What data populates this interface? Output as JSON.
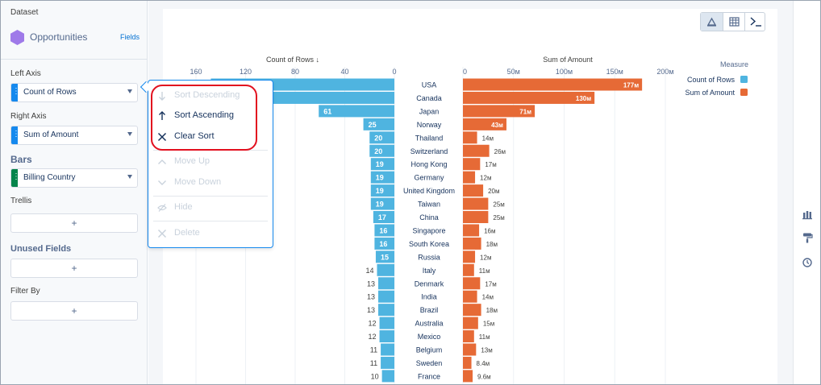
{
  "left_panel": {
    "dataset_label": "Dataset",
    "dataset_name": "Opportunities",
    "fields_link": "Fields",
    "left_axis_label": "Left Axis",
    "left_axis_value": "Count of Rows",
    "right_axis_label": "Right Axis",
    "right_axis_value": "Sum of Amount",
    "bars_label": "Bars",
    "bars_value": "Billing Country",
    "trellis_label": "Trellis",
    "unused_label": "Unused Fields",
    "filter_label": "Filter By",
    "add_symbol": "+",
    "colors": {
      "left_tab": "#1589ee",
      "right_tab": "#1589ee",
      "bars_tab": "#04844b",
      "hex": "#9f7ae9"
    }
  },
  "popup_menu": {
    "items": [
      {
        "label": "Sort Descending",
        "icon": "arrow-down-icon",
        "enabled": false
      },
      {
        "label": "Sort Ascending",
        "icon": "arrow-up-icon",
        "enabled": true
      },
      {
        "label": "Clear Sort",
        "icon": "close-icon",
        "enabled": true
      },
      {
        "label": "Move Up",
        "icon": "chevron-up-icon",
        "enabled": false
      },
      {
        "label": "Move Down",
        "icon": "chevron-down-icon",
        "enabled": false
      },
      {
        "label": "Hide",
        "icon": "eye-hidden-icon",
        "enabled": false
      },
      {
        "label": "Delete",
        "icon": "close-icon",
        "enabled": false
      }
    ]
  },
  "toolbar": {
    "view_buttons": [
      "chart-icon",
      "table-icon",
      "console-icon"
    ],
    "active": "chart-icon"
  },
  "side_icons": [
    "bar-chart-icon",
    "paint-roller-icon",
    "clock-icon"
  ],
  "chart_data": {
    "type": "bar",
    "orientation": "horizontal-butterfly",
    "categories": [
      "USA",
      "Canada",
      "Japan",
      "Norway",
      "Thailand",
      "Switzerland",
      "Hong Kong",
      "Germany",
      "United Kingdom",
      "Taiwan",
      "China",
      "Singapore",
      "South Korea",
      "Russia",
      "Italy",
      "Denmark",
      "India",
      "Brazil",
      "Australia",
      "Mexico",
      "Belgium",
      "Sweden",
      "France"
    ],
    "series": [
      {
        "name": "Count of Rows",
        "axis_title": "Count of Rows ↓",
        "color": "#4fb4e0",
        "values": [
          148,
          128,
          61,
          25,
          20,
          20,
          19,
          19,
          19,
          19,
          17,
          16,
          16,
          15,
          14,
          13,
          13,
          13,
          12,
          12,
          11,
          11,
          10
        ],
        "labels": [
          "",
          "",
          "61",
          "25",
          "20",
          "20",
          "19",
          "19",
          "19",
          "19",
          "17",
          "16",
          "16",
          "15",
          "14",
          "13",
          "13",
          "13",
          "12",
          "12",
          "11",
          "11",
          "10"
        ],
        "ticks": [
          "160",
          "120",
          "80",
          "40",
          "0"
        ],
        "tick_values": [
          160,
          120,
          80,
          40,
          0
        ],
        "xlim": [
          0,
          185
        ]
      },
      {
        "name": "Sum of Amount",
        "axis_title": "Sum of Amount",
        "color": "#e66a36",
        "values": [
          177,
          130,
          71,
          43,
          14,
          26,
          17,
          12,
          20,
          25,
          25,
          16,
          18,
          12,
          11,
          17,
          14,
          18,
          15,
          11,
          13,
          8.4,
          9.6
        ],
        "labels": [
          "177м",
          "130м",
          "71м",
          "43м",
          "14м",
          "26м",
          "17м",
          "12м",
          "20м",
          "25м",
          "25м",
          "16м",
          "18м",
          "12м",
          "11м",
          "17м",
          "14м",
          "18м",
          "15м",
          "11м",
          "13м",
          "8.4м",
          "9.6м"
        ],
        "ticks": [
          "0",
          "50м",
          "100м",
          "150м",
          "200м"
        ],
        "tick_values": [
          0,
          50,
          100,
          150,
          200
        ],
        "xlim": [
          0,
          200
        ]
      }
    ],
    "legend": {
      "title": "Measure",
      "items": [
        {
          "label": "Count of Rows",
          "color": "#4fb4e0"
        },
        {
          "label": "Sum of Amount",
          "color": "#e66a36"
        }
      ]
    }
  }
}
